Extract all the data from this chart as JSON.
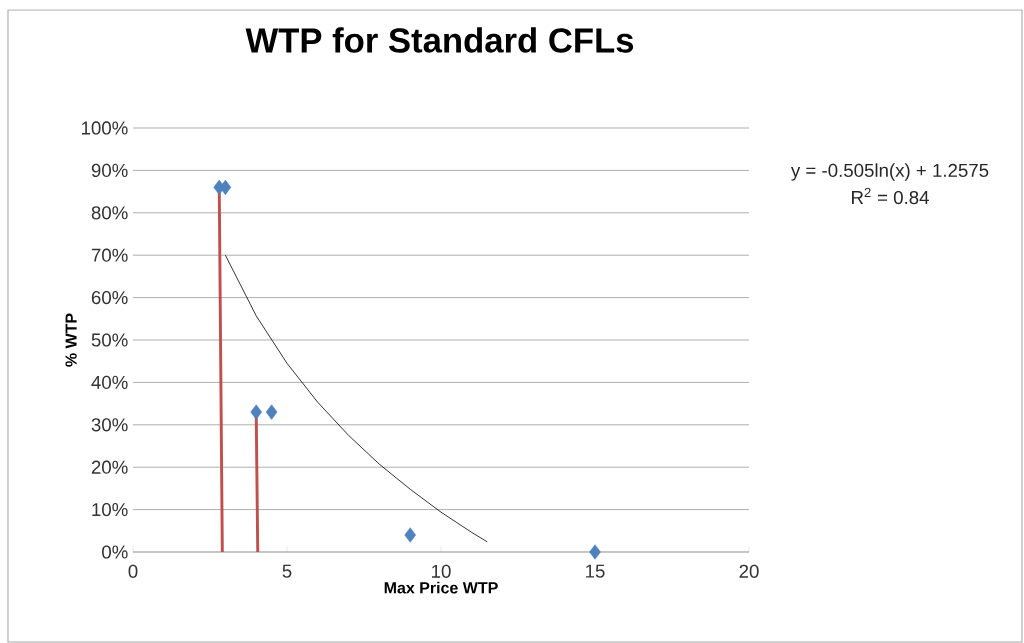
{
  "chart_data": {
    "type": "scatter",
    "title": "WTP for Standard CFLs",
    "xlabel": "Max Price WTP",
    "ylabel": "% WTP",
    "xlim": [
      0,
      20
    ],
    "xticks": [
      0,
      5,
      10,
      15,
      20
    ],
    "ylim": [
      0,
      100
    ],
    "yticks": [
      {
        "value": 0,
        "label": "0%"
      },
      {
        "value": 10,
        "label": "10%"
      },
      {
        "value": 20,
        "label": "20%"
      },
      {
        "value": 30,
        "label": "30%"
      },
      {
        "value": 40,
        "label": "40%"
      },
      {
        "value": 50,
        "label": "50%"
      },
      {
        "value": 60,
        "label": "60%"
      },
      {
        "value": 70,
        "label": "70%"
      },
      {
        "value": 80,
        "label": "80%"
      },
      {
        "value": 90,
        "label": "90%"
      },
      {
        "value": 100,
        "label": "100%"
      }
    ],
    "grid": "y",
    "marker": "diamond",
    "annotations": [
      "y = -0.505ln(x) + 1.2575",
      "R$^{2}$ = 0.84"
    ],
    "series": [
      {
        "color": "#4f81bd",
        "x": [
          2.8,
          3.0,
          4.0,
          4.5,
          9,
          15
        ],
        "values": [
          86,
          86,
          33,
          33,
          4,
          0
        ]
      },
      {
        "type": "line",
        "color": "#c0504d",
        "marker": "none",
        "x": [
          2.8,
          2.9,
          3.5,
          4.0,
          4.05
        ],
        "values": [
          86,
          0,
          null,
          33,
          0
        ]
      },
      {
        "type": "line",
        "color": "#000000",
        "marker": "none",
        "x": [
          3,
          4,
          5,
          6,
          7,
          8,
          9,
          10,
          11,
          11.5
        ],
        "values": [
          70,
          55.7,
          44.5,
          35.3,
          27.5,
          20.7,
          14.8,
          9.4,
          4.6,
          2.4
        ]
      }
    ]
  }
}
